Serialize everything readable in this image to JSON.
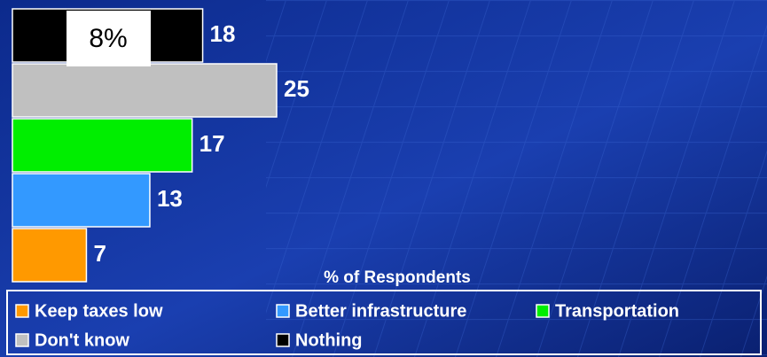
{
  "chart_data": {
    "type": "bar",
    "orientation": "horizontal",
    "x_label": "% of Respondents",
    "annotation": "8%",
    "xlim": [
      0,
      25
    ],
    "series": [
      {
        "name": "Keep taxes low",
        "color": "#ff9900",
        "values": [
          7
        ]
      },
      {
        "name": "Better infrastructure",
        "color": "#3399ff",
        "values": [
          13
        ]
      },
      {
        "name": "Transportation",
        "color": "#00ee00",
        "values": [
          17
        ]
      },
      {
        "name": "Don't know",
        "color": "#c0c0c0",
        "values": [
          25
        ]
      },
      {
        "name": "Nothing",
        "color": "#000000",
        "values": [
          18
        ]
      }
    ]
  }
}
